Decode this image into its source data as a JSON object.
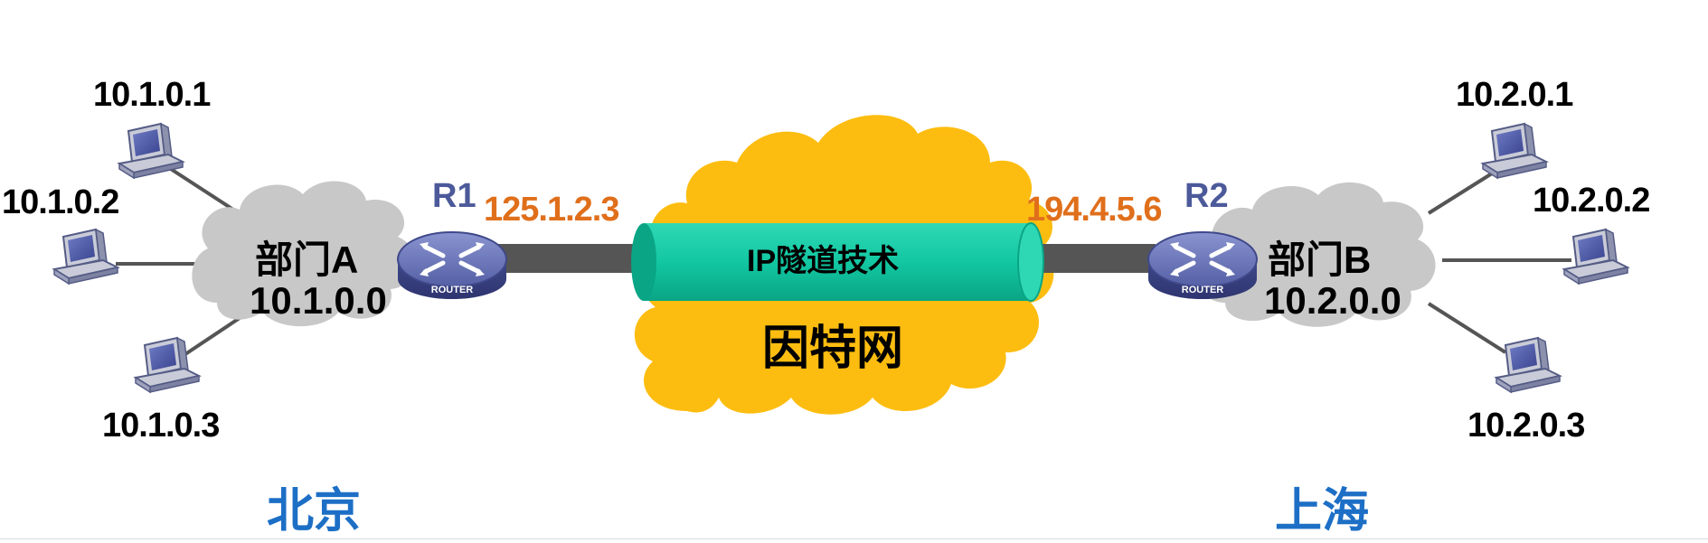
{
  "left_site": {
    "city": "北京",
    "department": "部门A",
    "network": "10.1.0.0",
    "hosts": [
      "10.1.0.1",
      "10.1.0.2",
      "10.1.0.3"
    ],
    "router": {
      "name": "R1",
      "badge": "ROUTER",
      "public_ip": "125.1.2.3"
    }
  },
  "right_site": {
    "city": "上海",
    "department": "部门B",
    "network": "10.2.0.0",
    "hosts": [
      "10.2.0.1",
      "10.2.0.2",
      "10.2.0.3"
    ],
    "router": {
      "name": "R2",
      "badge": "ROUTER",
      "public_ip": "194.4.5.6"
    }
  },
  "internet": {
    "label": "因特网"
  },
  "tunnel": {
    "label": "IP隧道技术"
  },
  "colors": {
    "internet_cloud": "#fdbd10",
    "site_cloud": "#c8c8c8",
    "tunnel": "#12c7a2",
    "link": "#555555",
    "router_body": "#5560a6",
    "public_ip": "#e06f1b",
    "city": "#1d6fc6"
  }
}
